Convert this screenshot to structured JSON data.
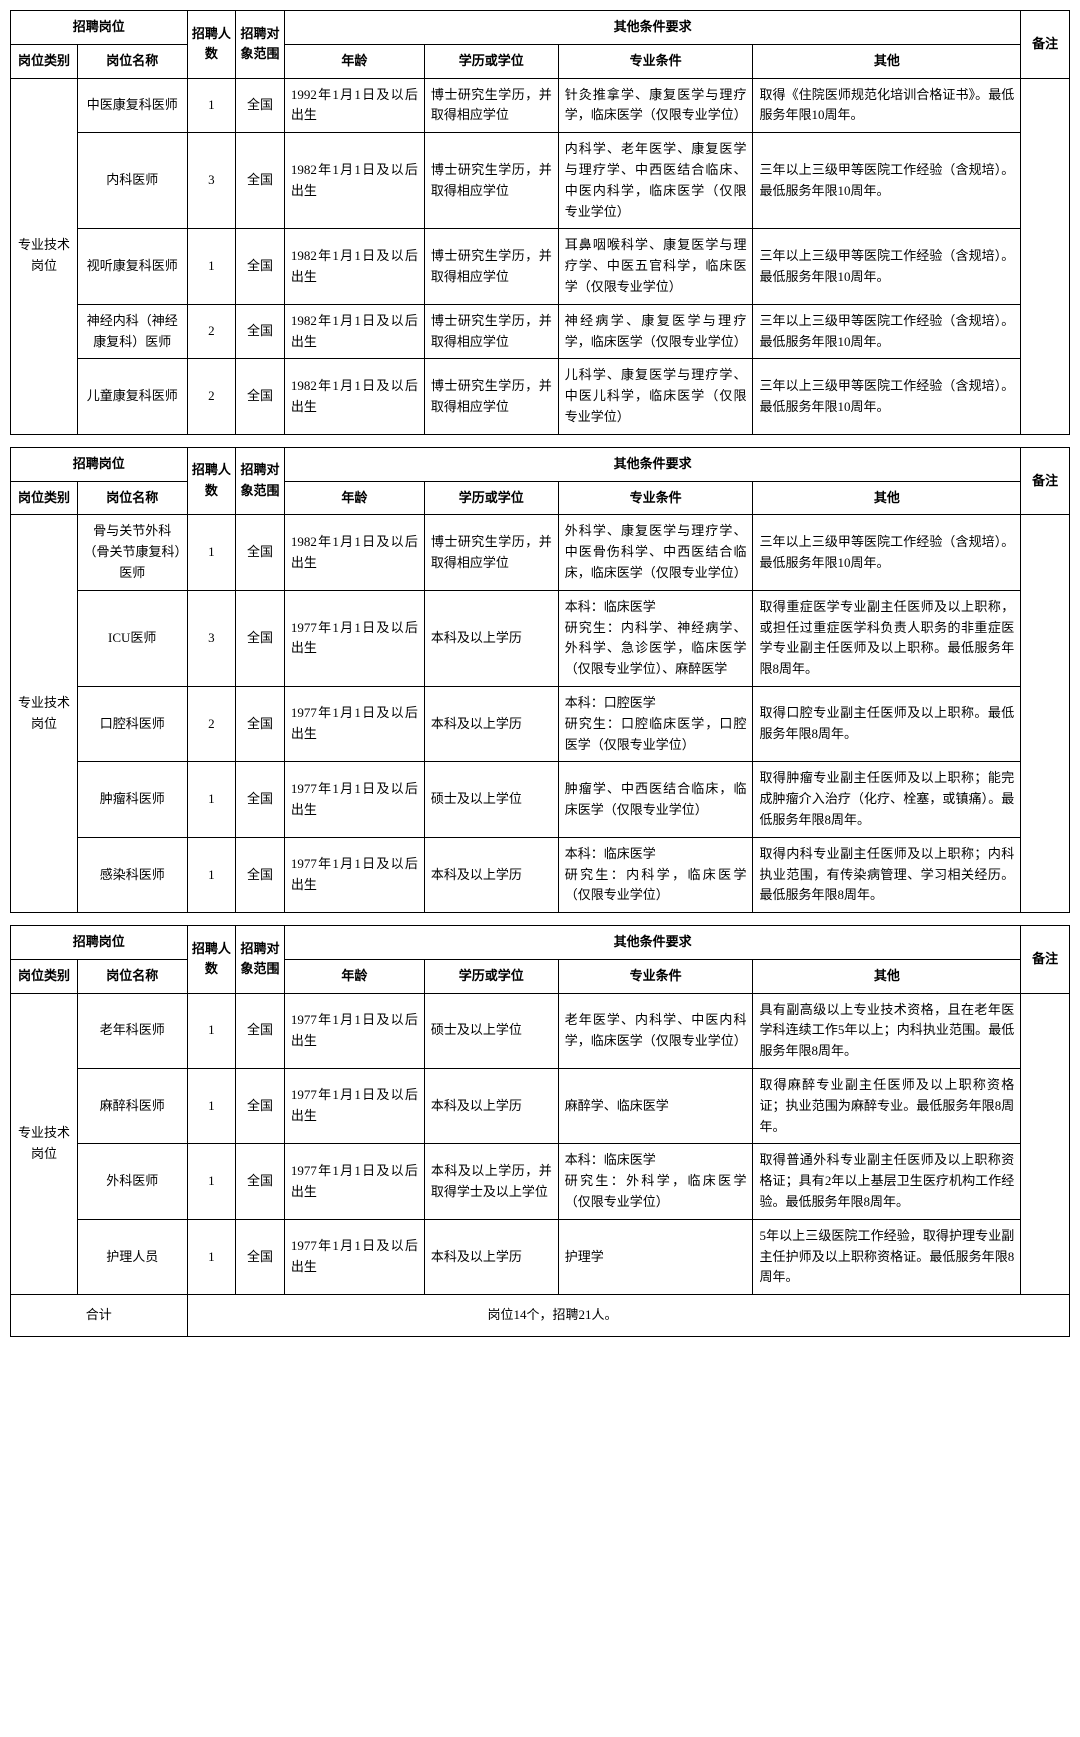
{
  "headers": {
    "position_group": "招聘岗位",
    "count": "招聘人数",
    "scope": "招聘对象范围",
    "req_group": "其他条件要求",
    "remark": "备注",
    "category": "岗位类别",
    "name": "岗位名称",
    "age": "年龄",
    "education": "学历或学位",
    "major": "专业条件",
    "other": "其他"
  },
  "category_label": "专业技术岗位",
  "sections": [
    {
      "rows": [
        {
          "name": "中医康复科医师",
          "count": "1",
          "scope": "全国",
          "age": "1992年1月1日及以后出生",
          "education": "博士研究生学历，并取得相应学位",
          "major": "针灸推拿学、康复医学与理疗学，临床医学（仅限专业学位）",
          "other": "取得《住院医师规范化培训合格证书》。最低服务年限10周年。"
        },
        {
          "name": "内科医师",
          "count": "3",
          "scope": "全国",
          "age": "1982年1月1日及以后出生",
          "education": "博士研究生学历，并取得相应学位",
          "major": "内科学、老年医学、康复医学与理疗学、中西医结合临床、中医内科学，临床医学（仅限专业学位）",
          "other": "三年以上三级甲等医院工作经验（含规培）。最低服务年限10周年。"
        },
        {
          "name": "视听康复科医师",
          "count": "1",
          "scope": "全国",
          "age": "1982年1月1日及以后出生",
          "education": "博士研究生学历，并取得相应学位",
          "major": "耳鼻咽喉科学、康复医学与理疗学、中医五官科学，临床医学（仅限专业学位）",
          "other": "三年以上三级甲等医院工作经验（含规培）。最低服务年限10周年。"
        },
        {
          "name": "神经内科（神经康复科）医师",
          "count": "2",
          "scope": "全国",
          "age": "1982年1月1日及以后出生",
          "education": "博士研究生学历，并取得相应学位",
          "major": "神经病学、康复医学与理疗学，临床医学（仅限专业学位）",
          "other": "三年以上三级甲等医院工作经验（含规培）。最低服务年限10周年。"
        },
        {
          "name": "儿童康复科医师",
          "count": "2",
          "scope": "全国",
          "age": "1982年1月1日及以后出生",
          "education": "博士研究生学历，并取得相应学位",
          "major": "儿科学、康复医学与理疗学、中医儿科学，临床医学（仅限专业学位）",
          "other": "三年以上三级甲等医院工作经验（含规培）。最低服务年限10周年。"
        }
      ]
    },
    {
      "rows": [
        {
          "name": "骨与关节外科（骨关节康复科）医师",
          "count": "1",
          "scope": "全国",
          "age": "1982年1月1日及以后出生",
          "education": "博士研究生学历，并取得相应学位",
          "major": "外科学、康复医学与理疗学、中医骨伤科学、中西医结合临床，临床医学（仅限专业学位）",
          "other": "三年以上三级甲等医院工作经验（含规培）。最低服务年限10周年。"
        },
        {
          "name": "ICU医师",
          "count": "3",
          "scope": "全国",
          "age": "1977年1月1日及以后出生",
          "education": "本科及以上学历",
          "major": "本科：临床医学\n研究生：内科学、神经病学、外科学、急诊医学，临床医学（仅限专业学位）、麻醉医学",
          "other": "取得重症医学专业副主任医师及以上职称，或担任过重症医学科负责人职务的非重症医学专业副主任医师及以上职称。最低服务年限8周年。"
        },
        {
          "name": "口腔科医师",
          "count": "2",
          "scope": "全国",
          "age": "1977年1月1日及以后出生",
          "education": "本科及以上学历",
          "major": "本科：口腔医学\n研究生：口腔临床医学，口腔医学（仅限专业学位）",
          "other": "取得口腔专业副主任医师及以上职称。最低服务年限8周年。"
        },
        {
          "name": "肿瘤科医师",
          "count": "1",
          "scope": "全国",
          "age": "1977年1月1日及以后出生",
          "education": "硕士及以上学位",
          "major": "肿瘤学、中西医结合临床，临床医学（仅限专业学位）",
          "other": "取得肿瘤专业副主任医师及以上职称；能完成肿瘤介入治疗（化疗、栓塞，或镇痛）。最低服务年限8周年。"
        },
        {
          "name": "感染科医师",
          "count": "1",
          "scope": "全国",
          "age": "1977年1月1日及以后出生",
          "education": "本科及以上学历",
          "major": "本科：临床医学\n研究生：内科学，临床医学（仅限专业学位）",
          "other": "取得内科专业副主任医师及以上职称；内科执业范围，有传染病管理、学习相关经历。最低服务年限8周年。"
        }
      ]
    },
    {
      "rows": [
        {
          "name": "老年科医师",
          "count": "1",
          "scope": "全国",
          "age": "1977年1月1日及以后出生",
          "education": "硕士及以上学位",
          "major": "老年医学、内科学、中医内科学，临床医学（仅限专业学位）",
          "other": "具有副高级以上专业技术资格，且在老年医学科连续工作5年以上；内科执业范围。最低服务年限8周年。"
        },
        {
          "name": "麻醉科医师",
          "count": "1",
          "scope": "全国",
          "age": "1977年1月1日及以后出生",
          "education": "本科及以上学历",
          "major": "麻醉学、临床医学",
          "other": "取得麻醉专业副主任医师及以上职称资格证；执业范围为麻醉专业。最低服务年限8周年。"
        },
        {
          "name": "外科医师",
          "count": "1",
          "scope": "全国",
          "age": "1977年1月1日及以后出生",
          "education": "本科及以上学历，并取得学士及以上学位",
          "major": "本科：临床医学\n研究生：外科学，临床医学（仅限专业学位）",
          "other": "取得普通外科专业副主任医师及以上职称资格证；具有2年以上基层卫生医疗机构工作经验。最低服务年限8周年。"
        },
        {
          "name": "护理人员",
          "count": "1",
          "scope": "全国",
          "age": "1977年1月1日及以后出生",
          "education": "本科及以上学历",
          "major": "护理学",
          "other": "5年以上三级医院工作经验，取得护理专业副主任护师及以上职称资格证。最低服务年限8周年。"
        }
      ]
    }
  ],
  "total": {
    "label": "合计",
    "text": "岗位14个，招聘21人。"
  }
}
